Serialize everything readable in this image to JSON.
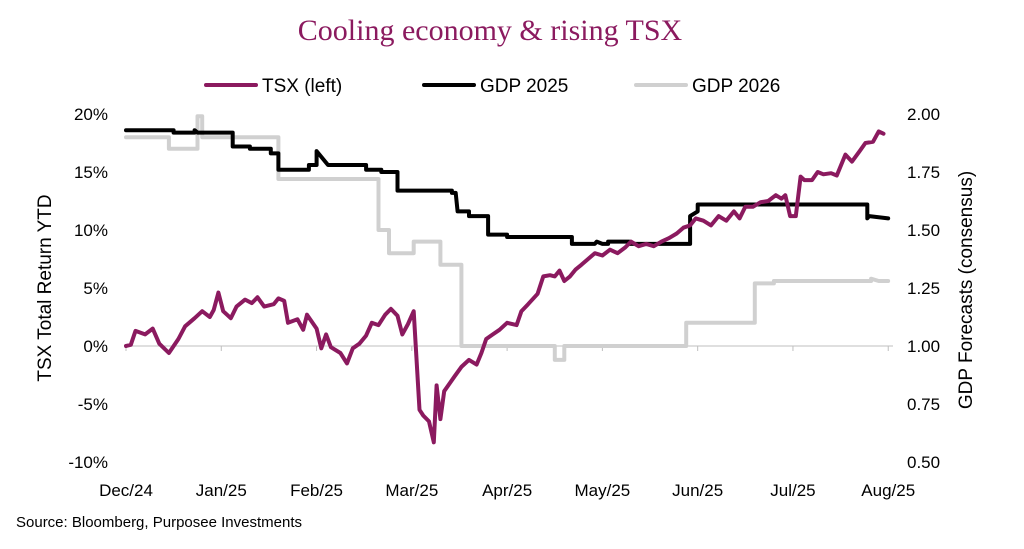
{
  "chart_data": {
    "type": "line",
    "title": "Cooling economy & rising TSX",
    "source": "Source: Bloomberg, Purposee Investments",
    "ylabel_left": "TSX Total Return YTD",
    "ylabel_right": "GDP Forecasts (consensus)",
    "ylim_left": [
      -10,
      20
    ],
    "ylim_right": [
      0.5,
      2.0
    ],
    "yticks_left": [
      "-10%",
      "-5%",
      "0%",
      "5%",
      "10%",
      "15%",
      "20%"
    ],
    "yticks_right": [
      "0.50",
      "0.75",
      "1.00",
      "1.25",
      "1.50",
      "1.75",
      "2.00"
    ],
    "x_range": [
      0,
      8.05
    ],
    "x_ticks": [
      "Dec/24",
      "Jan/25",
      "Feb/25",
      "Mar/25",
      "Apr/25",
      "May/25",
      "Jun/25",
      "Jul/25",
      "Aug/25"
    ],
    "series": [
      {
        "name": "TSX (left)",
        "axis": "left",
        "color": "#8b1a5f",
        "points": [
          [
            0,
            0
          ],
          [
            0.05,
            0.1
          ],
          [
            0.1,
            1.3
          ],
          [
            0.2,
            1.0
          ],
          [
            0.28,
            1.5
          ],
          [
            0.35,
            0.2
          ],
          [
            0.45,
            -0.6
          ],
          [
            0.55,
            0.6
          ],
          [
            0.62,
            1.7
          ],
          [
            0.72,
            2.4
          ],
          [
            0.8,
            3.0
          ],
          [
            0.88,
            2.5
          ],
          [
            0.92,
            3.1
          ],
          [
            0.97,
            4.6
          ],
          [
            1.02,
            3.0
          ],
          [
            1.1,
            2.4
          ],
          [
            1.16,
            3.4
          ],
          [
            1.25,
            4.0
          ],
          [
            1.32,
            3.7
          ],
          [
            1.38,
            4.2
          ],
          [
            1.45,
            3.4
          ],
          [
            1.55,
            3.6
          ],
          [
            1.6,
            4.1
          ],
          [
            1.66,
            3.9
          ],
          [
            1.7,
            2.0
          ],
          [
            1.8,
            2.3
          ],
          [
            1.86,
            1.4
          ],
          [
            1.9,
            2.7
          ],
          [
            2.0,
            1.5
          ],
          [
            2.05,
            -0.2
          ],
          [
            2.1,
            1.0
          ],
          [
            2.15,
            -0.1
          ],
          [
            2.25,
            -0.6
          ],
          [
            2.32,
            -1.5
          ],
          [
            2.38,
            -0.2
          ],
          [
            2.45,
            0.2
          ],
          [
            2.52,
            0.9
          ],
          [
            2.58,
            2.0
          ],
          [
            2.65,
            1.8
          ],
          [
            2.72,
            2.7
          ],
          [
            2.78,
            3.2
          ],
          [
            2.85,
            2.6
          ],
          [
            2.9,
            1.0
          ],
          [
            2.96,
            1.9
          ],
          [
            3.02,
            3.0
          ],
          [
            3.08,
            -5.5
          ],
          [
            3.12,
            -6.0
          ],
          [
            3.18,
            -6.5
          ],
          [
            3.23,
            -8.3
          ],
          [
            3.26,
            -3.4
          ],
          [
            3.3,
            -6.3
          ],
          [
            3.34,
            -3.9
          ],
          [
            3.45,
            -2.6
          ],
          [
            3.52,
            -1.8
          ],
          [
            3.6,
            -1.2
          ],
          [
            3.68,
            -1.6
          ],
          [
            3.73,
            -0.6
          ],
          [
            3.78,
            0.6
          ],
          [
            3.85,
            1.0
          ],
          [
            3.92,
            1.4
          ],
          [
            4.0,
            2.0
          ],
          [
            4.1,
            1.8
          ],
          [
            4.15,
            3.0
          ],
          [
            4.22,
            3.6
          ],
          [
            4.32,
            4.5
          ],
          [
            4.38,
            6.0
          ],
          [
            4.45,
            6.1
          ],
          [
            4.5,
            6.0
          ],
          [
            4.55,
            6.5
          ],
          [
            4.6,
            5.6
          ],
          [
            4.66,
            6.0
          ],
          [
            4.72,
            6.6
          ],
          [
            4.78,
            7.0
          ],
          [
            4.85,
            7.5
          ],
          [
            4.92,
            8.0
          ],
          [
            5.0,
            7.8
          ],
          [
            5.08,
            8.3
          ],
          [
            5.16,
            8.0
          ],
          [
            5.24,
            8.5
          ],
          [
            5.3,
            9.0
          ],
          [
            5.38,
            8.6
          ],
          [
            5.46,
            8.8
          ],
          [
            5.54,
            8.6
          ],
          [
            5.62,
            9.0
          ],
          [
            5.7,
            9.3
          ],
          [
            5.78,
            9.7
          ],
          [
            5.85,
            10.2
          ],
          [
            5.92,
            10.4
          ],
          [
            5.98,
            11.0
          ],
          [
            6.06,
            10.8
          ],
          [
            6.14,
            10.4
          ],
          [
            6.22,
            11.2
          ],
          [
            6.3,
            10.8
          ],
          [
            6.38,
            11.6
          ],
          [
            6.44,
            11.0
          ],
          [
            6.5,
            12.0
          ],
          [
            6.58,
            12.0
          ],
          [
            6.66,
            12.4
          ],
          [
            6.74,
            12.5
          ],
          [
            6.82,
            13.0
          ],
          [
            6.88,
            12.7
          ],
          [
            6.92,
            13.0
          ],
          [
            6.97,
            11.2
          ],
          [
            7.03,
            11.2
          ],
          [
            7.08,
            14.6
          ],
          [
            7.12,
            14.3
          ],
          [
            7.2,
            14.3
          ],
          [
            7.26,
            15.0
          ],
          [
            7.32,
            14.8
          ],
          [
            7.4,
            14.9
          ],
          [
            7.46,
            14.7
          ],
          [
            7.5,
            15.5
          ],
          [
            7.55,
            16.5
          ],
          [
            7.62,
            15.9
          ],
          [
            7.7,
            16.8
          ],
          [
            7.76,
            17.5
          ],
          [
            7.84,
            17.6
          ],
          [
            7.9,
            18.5
          ],
          [
            7.95,
            18.3
          ]
        ]
      },
      {
        "name": "GDP 2025",
        "axis": "right",
        "color": "#000000",
        "points": [
          [
            0,
            1.93
          ],
          [
            0.5,
            1.93
          ],
          [
            0.5,
            1.92
          ],
          [
            0.72,
            1.92
          ],
          [
            0.72,
            1.93
          ],
          [
            0.75,
            1.92
          ],
          [
            1.12,
            1.92
          ],
          [
            1.12,
            1.86
          ],
          [
            1.3,
            1.86
          ],
          [
            1.3,
            1.85
          ],
          [
            1.52,
            1.85
          ],
          [
            1.52,
            1.83
          ],
          [
            1.6,
            1.83
          ],
          [
            1.6,
            1.76
          ],
          [
            1.92,
            1.76
          ],
          [
            1.92,
            1.78
          ],
          [
            2.0,
            1.78
          ],
          [
            2.0,
            1.84
          ],
          [
            2.12,
            1.78
          ],
          [
            2.52,
            1.78
          ],
          [
            2.52,
            1.76
          ],
          [
            2.68,
            1.76
          ],
          [
            2.68,
            1.75
          ],
          [
            2.85,
            1.75
          ],
          [
            2.85,
            1.67
          ],
          [
            3.42,
            1.67
          ],
          [
            3.42,
            1.66
          ],
          [
            3.46,
            1.66
          ],
          [
            3.48,
            1.58
          ],
          [
            3.6,
            1.58
          ],
          [
            3.6,
            1.56
          ],
          [
            3.8,
            1.56
          ],
          [
            3.8,
            1.48
          ],
          [
            4.0,
            1.48
          ],
          [
            4.0,
            1.47
          ],
          [
            4.68,
            1.47
          ],
          [
            4.68,
            1.44
          ],
          [
            4.92,
            1.44
          ],
          [
            4.94,
            1.45
          ],
          [
            5.0,
            1.44
          ],
          [
            5.06,
            1.44
          ],
          [
            5.06,
            1.45
          ],
          [
            5.28,
            1.45
          ],
          [
            5.28,
            1.44
          ],
          [
            5.92,
            1.44
          ],
          [
            5.92,
            1.56
          ],
          [
            6.0,
            1.58
          ],
          [
            6.0,
            1.61
          ],
          [
            7.78,
            1.61
          ],
          [
            7.78,
            1.55
          ],
          [
            7.8,
            1.56
          ],
          [
            8.0,
            1.55
          ]
        ]
      },
      {
        "name": "GDP 2026",
        "axis": "right",
        "color": "#d0d0d0",
        "points": [
          [
            0,
            1.9
          ],
          [
            0.45,
            1.9
          ],
          [
            0.45,
            1.85
          ],
          [
            0.75,
            1.85
          ],
          [
            0.75,
            1.99
          ],
          [
            0.8,
            1.99
          ],
          [
            0.8,
            1.9
          ],
          [
            1.6,
            1.9
          ],
          [
            1.6,
            1.72
          ],
          [
            2.65,
            1.72
          ],
          [
            2.65,
            1.5
          ],
          [
            2.76,
            1.5
          ],
          [
            2.76,
            1.4
          ],
          [
            3.02,
            1.4
          ],
          [
            3.02,
            1.45
          ],
          [
            3.3,
            1.45
          ],
          [
            3.3,
            1.35
          ],
          [
            3.52,
            1.35
          ],
          [
            3.52,
            1.0
          ],
          [
            4.5,
            1.0
          ],
          [
            4.5,
            0.94
          ],
          [
            4.6,
            0.94
          ],
          [
            4.6,
            1.0
          ],
          [
            5.88,
            1.0
          ],
          [
            5.88,
            1.1
          ],
          [
            6.6,
            1.1
          ],
          [
            6.6,
            1.27
          ],
          [
            6.8,
            1.27
          ],
          [
            6.8,
            1.28
          ],
          [
            7.82,
            1.28
          ],
          [
            7.82,
            1.29
          ],
          [
            7.9,
            1.28
          ],
          [
            8.0,
            1.28
          ]
        ]
      }
    ]
  }
}
